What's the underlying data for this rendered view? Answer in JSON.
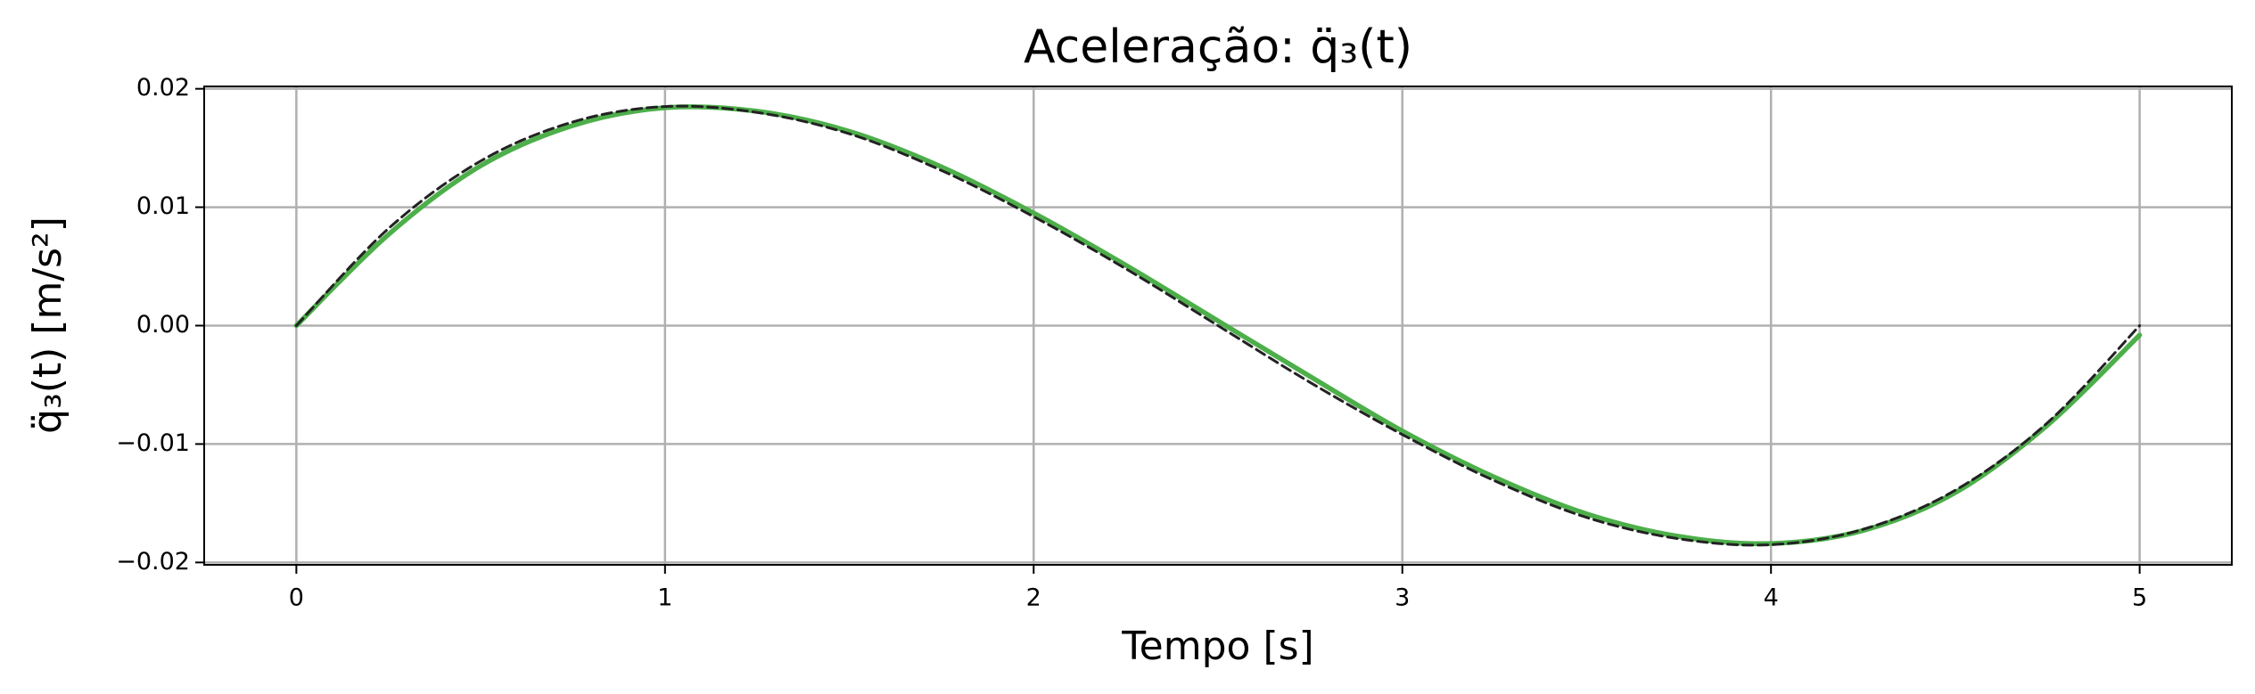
{
  "chart_data": {
    "type": "line",
    "title": "Aceleração: q̈₃(t)",
    "x_label": "Tempo [s]",
    "y_label": "q̈₃(t) [m/s²]",
    "x": [
      0,
      0.25,
      0.5,
      0.75,
      1,
      1.25,
      1.5,
      1.75,
      2,
      2.25,
      2.5,
      2.75,
      3,
      3.25,
      3.5,
      3.75,
      4,
      4.25,
      4.5,
      4.75,
      5
    ],
    "series": [
      {
        "color": "#4daf4a",
        "style": "solid",
        "values": [
          0,
          0.0077,
          0.0135,
          0.0169,
          0.0184,
          0.0181,
          0.0164,
          0.0134,
          0.0095,
          0.0051,
          0.0004,
          -0.0043,
          -0.0089,
          -0.0128,
          -0.0159,
          -0.0178,
          -0.0184,
          -0.0173,
          -0.0141,
          -0.0084,
          -0.0008
        ]
      },
      {
        "color": "#222222",
        "style": "dashed",
        "values": [
          0,
          0.0082,
          0.0139,
          0.0172,
          0.0185,
          0.018,
          0.0162,
          0.0131,
          0.0092,
          0.0048,
          0,
          -0.0048,
          -0.0092,
          -0.0131,
          -0.0162,
          -0.018,
          -0.0185,
          -0.0172,
          -0.0139,
          -0.0082,
          0
        ]
      }
    ],
    "xlim": [
      -0.25,
      5.25
    ],
    "ylim": [
      -0.0202,
      0.0202
    ],
    "xticks": [
      0,
      1,
      2,
      3,
      4,
      5
    ],
    "yticks": [
      {
        "value": -0.02,
        "label": "−0.02"
      },
      {
        "value": -0.01,
        "label": "−0.01"
      },
      {
        "value": 0,
        "label": "0.00"
      },
      0.01,
      0.02
    ],
    "grid": true
  }
}
